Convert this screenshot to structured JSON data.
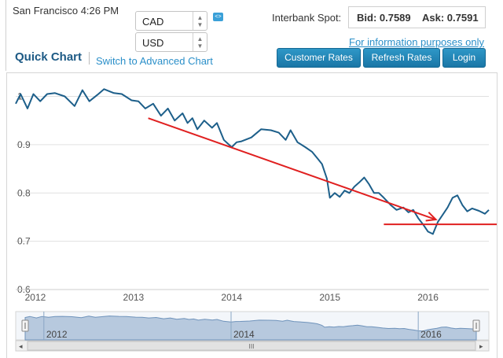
{
  "header": {
    "location_time": "San Francisco 4:26 PM",
    "from_currency": "CAD",
    "to_currency": "USD",
    "spot_label": "Interbank Spot:",
    "bid_text": "Bid: 0.7589",
    "ask_text": "Ask: 0.7591",
    "info_link": "For information purposes only"
  },
  "toolbar": {
    "title": "Quick Chart",
    "advanced_link": "Switch to Advanced Chart",
    "customer_rates": "Customer Rates",
    "refresh_rates": "Refresh Rates",
    "login": "Login"
  },
  "colors": {
    "series": "#1d5f8a",
    "annotation": "#e02020",
    "accent": "#2a8fc9",
    "navigator_fill": "#b7c9de"
  },
  "chart_data": {
    "type": "line",
    "series": [
      {
        "x": [
          2011.8,
          2011.85,
          2011.92,
          2011.98,
          2012.05,
          2012.12,
          2012.2,
          2012.3,
          2012.4,
          2012.48,
          2012.55,
          2012.63,
          2012.7,
          2012.8,
          2012.88,
          2012.98,
          2013.05,
          2013.12,
          2013.2,
          2013.28,
          2013.35,
          2013.42,
          2013.5,
          2013.55,
          2013.6,
          2013.65,
          2013.72,
          2013.8,
          2013.85,
          2013.92,
          2014.0,
          2014.05,
          2014.1,
          2014.2,
          2014.3,
          2014.4,
          2014.48,
          2014.55,
          2014.6,
          2014.67,
          2014.75,
          2014.82,
          2014.88,
          2014.92,
          2014.97,
          2015.0,
          2015.05,
          2015.1,
          2015.15,
          2015.2,
          2015.25,
          2015.3,
          2015.35,
          2015.4,
          2015.45,
          2015.5,
          2015.55,
          2015.62,
          2015.68,
          2015.75,
          2015.8,
          2015.85,
          2015.9,
          2015.95,
          2016.0,
          2016.05,
          2016.1,
          2016.15,
          2016.2,
          2016.25,
          2016.3,
          2016.35,
          2016.4,
          2016.45,
          2016.52,
          2016.58,
          2016.62
        ],
        "values": [
          0.985,
          1.005,
          0.975,
          1.005,
          0.99,
          1.005,
          1.007,
          1.0,
          0.98,
          1.013,
          0.99,
          1.003,
          1.015,
          1.007,
          1.005,
          0.992,
          0.99,
          0.975,
          0.985,
          0.96,
          0.975,
          0.95,
          0.965,
          0.945,
          0.955,
          0.932,
          0.95,
          0.935,
          0.945,
          0.91,
          0.895,
          0.905,
          0.907,
          0.915,
          0.932,
          0.93,
          0.925,
          0.91,
          0.93,
          0.905,
          0.895,
          0.885,
          0.87,
          0.86,
          0.83,
          0.79,
          0.8,
          0.792,
          0.805,
          0.8,
          0.813,
          0.822,
          0.832,
          0.818,
          0.8,
          0.8,
          0.79,
          0.775,
          0.765,
          0.77,
          0.76,
          0.765,
          0.748,
          0.735,
          0.72,
          0.715,
          0.74,
          0.755,
          0.77,
          0.79,
          0.795,
          0.775,
          0.762,
          0.768,
          0.763,
          0.757,
          0.765
        ]
      }
    ],
    "y_ticks": [
      "1",
      "0.9",
      "0.8",
      "0.7",
      "0.6"
    ],
    "y_tick_values": [
      1.0,
      0.9,
      0.8,
      0.7,
      0.6
    ],
    "ylim": [
      0.6,
      1.04
    ],
    "x_ticks": [
      "2012",
      "2013",
      "2014",
      "2015",
      "2016"
    ],
    "x_tick_values": [
      2012,
      2013,
      2014,
      2015,
      2016
    ],
    "xlim": [
      2011.8,
      2016.62
    ],
    "grid": true,
    "navigator_ticks": [
      "2012",
      "2014",
      "2016"
    ],
    "navigator_tick_values": [
      2012,
      2014,
      2016
    ],
    "annotations": [
      {
        "type": "arrow",
        "from": [
          2013.15,
          0.955
        ],
        "to": [
          2016.08,
          0.745
        ]
      },
      {
        "type": "hline",
        "y": 0.735,
        "from_x": 2015.55,
        "to_x": 2016.62
      }
    ],
    "scrollbar_grip": "III"
  }
}
